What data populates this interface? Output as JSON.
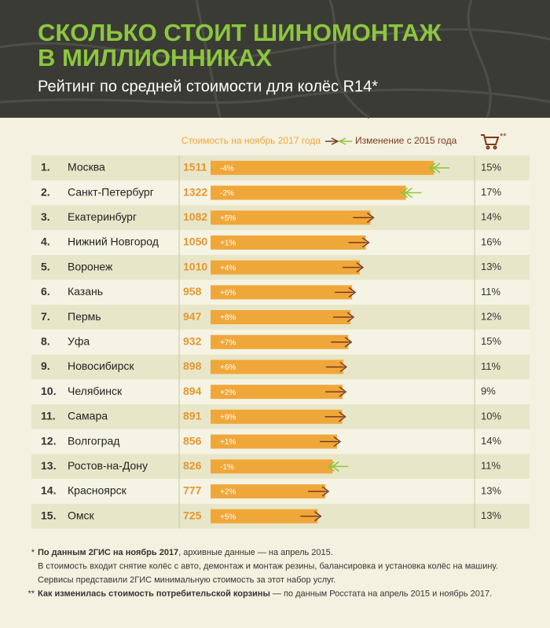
{
  "chart_data": {
    "type": "bar",
    "title": [
      "СКОЛЬКО СТОИТ ШИНОМОНТАЖ",
      "В МИЛЛИОННИКАХ"
    ],
    "subtitle": "Рейтинг по средней стоимости для колёс R14*",
    "basket_header": "**",
    "ranks": [
      "1.",
      "2.",
      "3.",
      "4.",
      "5.",
      "6.",
      "7.",
      "8.",
      "9.",
      "10.",
      "11.",
      "12.",
      "13.",
      "14.",
      "15."
    ],
    "categories": [
      "Москва",
      "Санкт-Петербург",
      "Екатеринбург",
      "Нижний Новгород",
      "Воронеж",
      "Казань",
      "Пермь",
      "Уфа",
      "Новосибирск",
      "Челябинск",
      "Самара",
      "Волгоград",
      "Ростов-на-Дону",
      "Красноярск",
      "Омск"
    ],
    "series": [
      {
        "name": "Стоимость на ноябрь 2017 года",
        "color": "#f0a73a",
        "values": [
          1511,
          1322,
          1082,
          1050,
          1010,
          958,
          947,
          932,
          898,
          894,
          891,
          856,
          826,
          777,
          725
        ]
      },
      {
        "name": "Изменение с 2015 года",
        "color": "#7b3a1e",
        "negative_color": "#8cc63f",
        "values": [
          -4,
          -2,
          5,
          1,
          4,
          6,
          8,
          7,
          6,
          2,
          9,
          1,
          -1,
          2,
          5
        ],
        "value_labels": [
          "-4%",
          "-2%",
          "+5%",
          "+1%",
          "+4%",
          "+6%",
          "+8%",
          "+7%",
          "+6%",
          "+2%",
          "+9%",
          "+1%",
          "-1%",
          "+2%",
          "+5%"
        ]
      },
      {
        "values": [
          15,
          17,
          14,
          16,
          13,
          11,
          12,
          15,
          11,
          9,
          10,
          14,
          11,
          13,
          13
        ],
        "value_labels": [
          "15%",
          "17%",
          "14%",
          "16%",
          "13%",
          "11%",
          "12%",
          "15%",
          "11%",
          "9%",
          "10%",
          "14%",
          "11%",
          "13%",
          "13%"
        ]
      }
    ],
    "notes": [
      {
        "marker": "*",
        "bold": "По данным 2ГИС на ноябрь 2017",
        "text": ", архивные данные — на апрель 2015."
      },
      {
        "text": "В стоимость входит снятие колёс с авто, демонтаж и монтаж резины, балансировка и установка колёс на машину."
      },
      {
        "text": "Сервисы представили 2ГИС минимальную стоимость за этот набор услуг."
      },
      {
        "marker": "**",
        "bold": "Как изменилась стоимость потребительской корзины",
        "text": " — по данным Росстата на апрель 2015 и ноябрь 2017."
      }
    ]
  }
}
